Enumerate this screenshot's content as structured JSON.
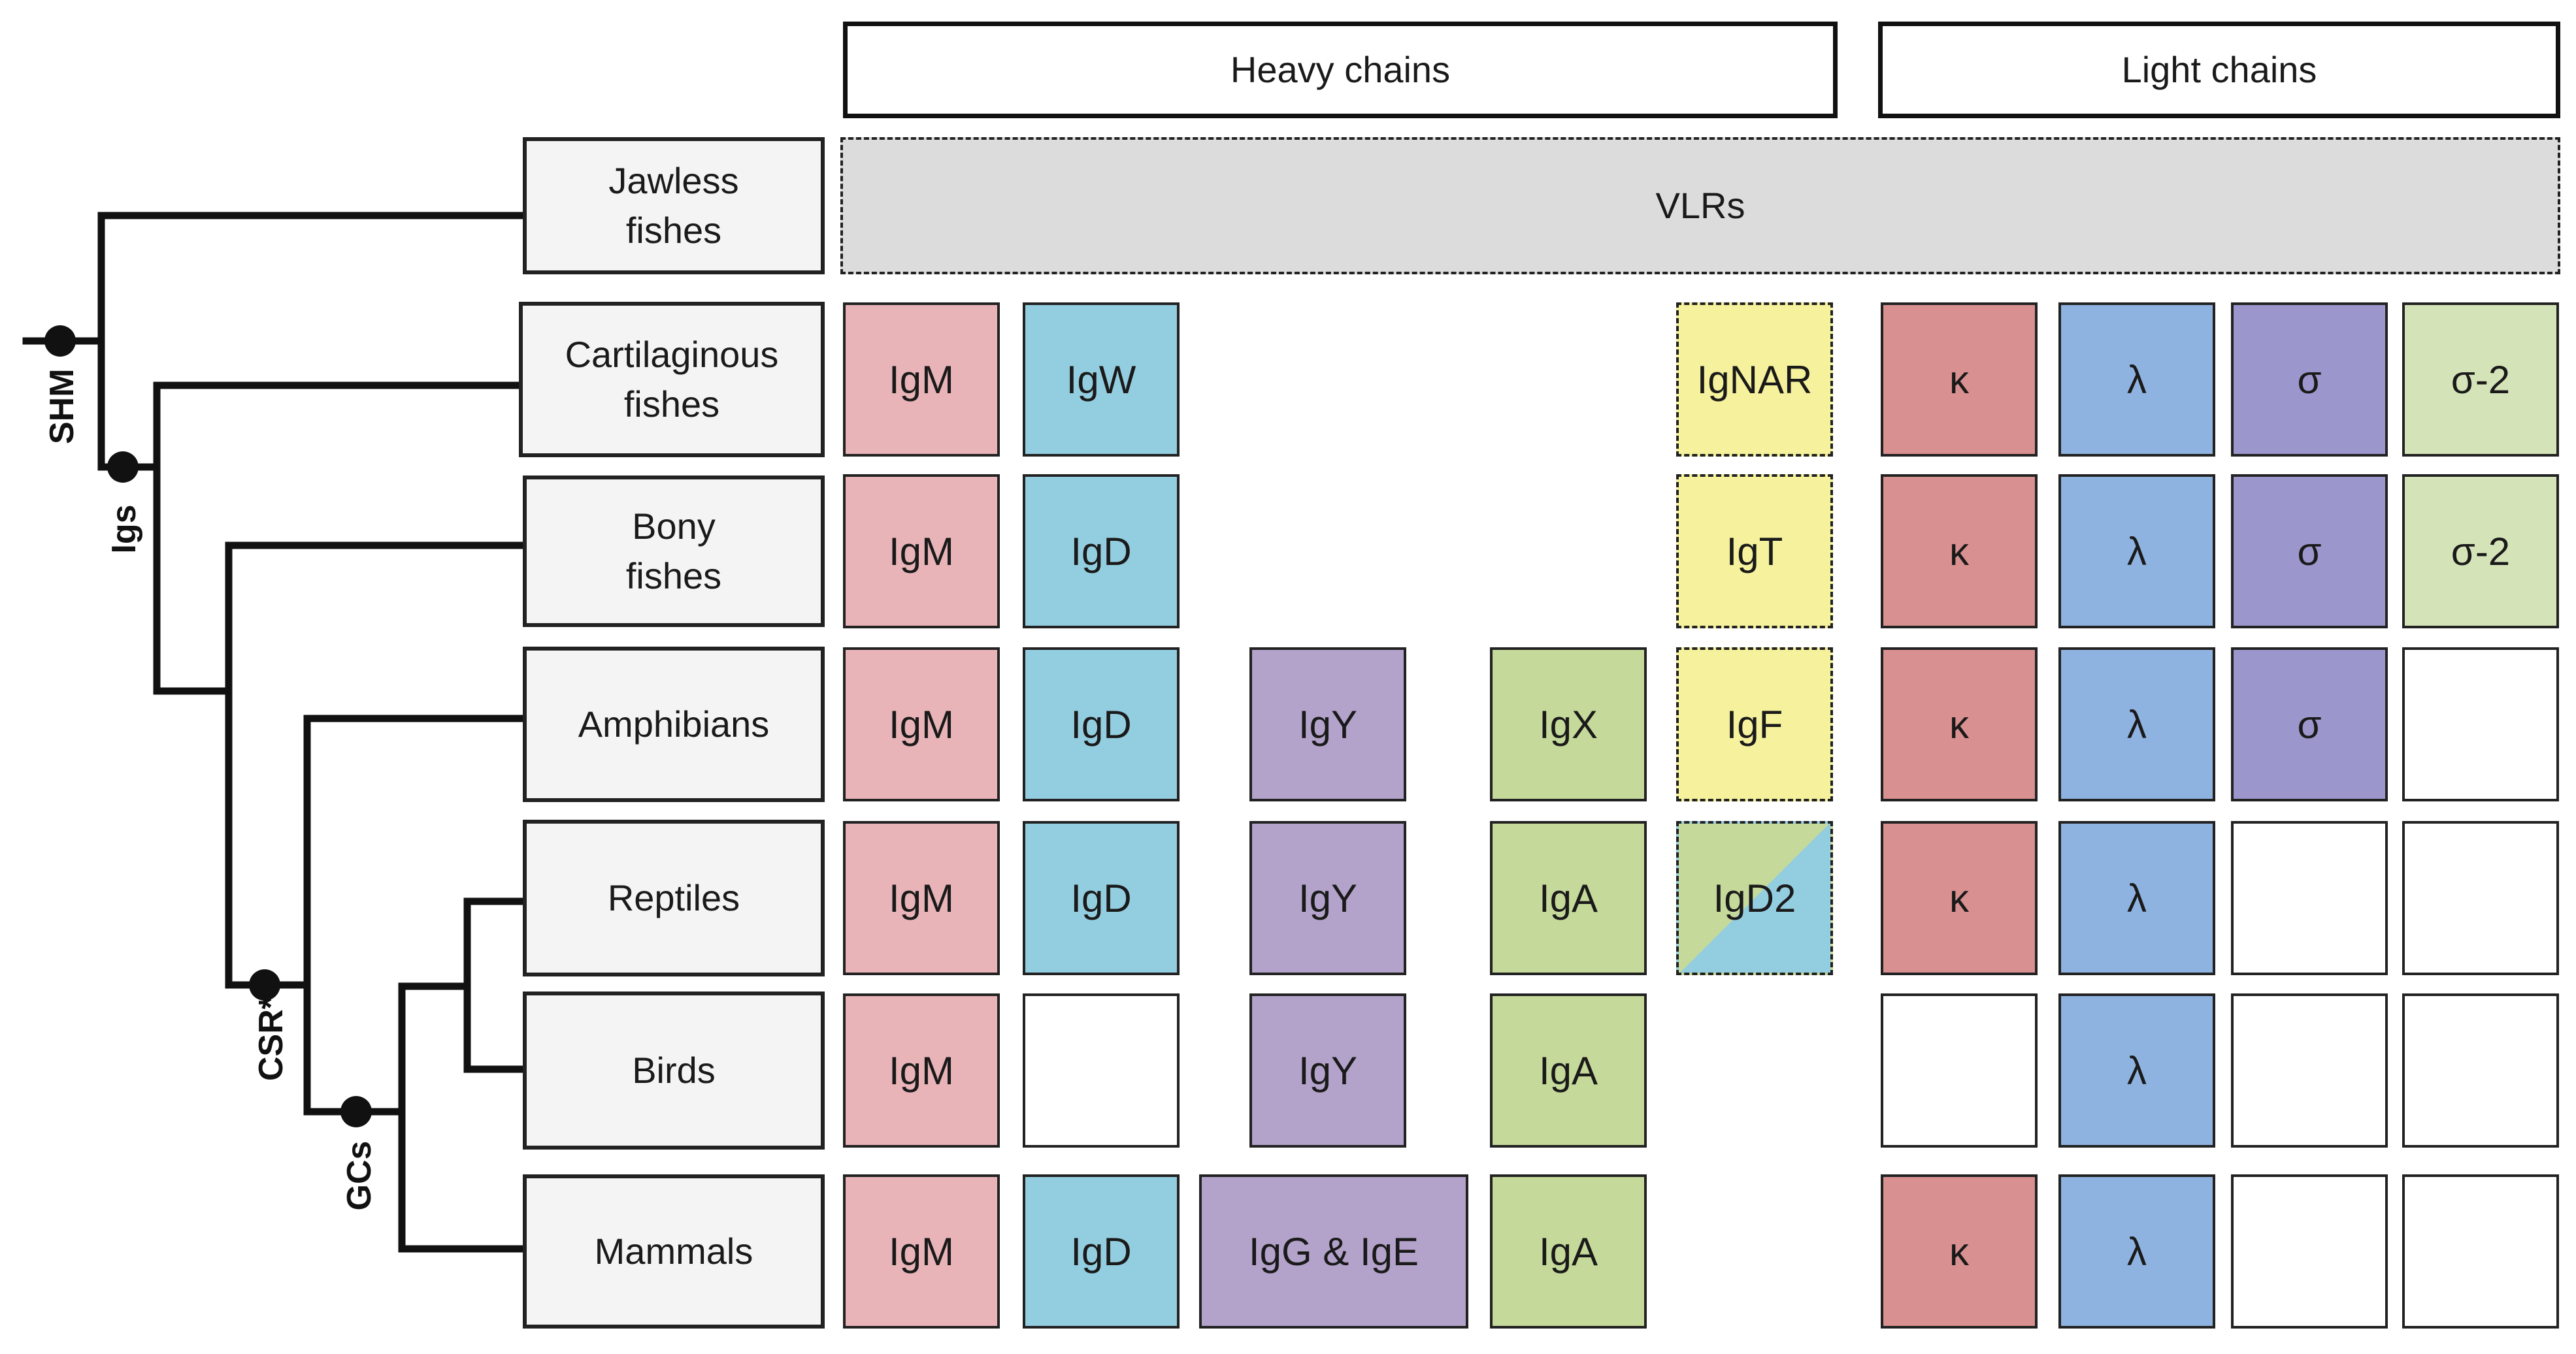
{
  "headers": {
    "heavy": "Heavy chains",
    "light": "Light chains"
  },
  "markers": {
    "shm": "SHM",
    "igs": "Igs",
    "csr": "CSR*",
    "gcs": "GCs"
  },
  "vlr_label": "VLRs",
  "colors": {
    "igm": "#e8b4b8",
    "igd": "#93cde0",
    "igy": "#b3a2c9",
    "iga": "#c5d99a",
    "dashed_yellow": "#f5f19c",
    "kappa": "#d99090",
    "lambda": "#8fb3e0",
    "sigma": "#9b97cc",
    "sigma2": "#d5e4b8",
    "taxon_bg": "#f4f4f4",
    "vlr_bg": "#dcdcdc"
  },
  "rows": [
    {
      "taxon": "Jawless\nfishes",
      "heavy": [],
      "light": []
    },
    {
      "taxon": "Cartilaginous\nfishes",
      "heavy": [
        {
          "label": "IgM",
          "color": "igm"
        },
        {
          "label": "IgW",
          "color": "igd"
        },
        {
          "label": "IgNAR",
          "color": "dashed_yellow",
          "dashed": true
        }
      ],
      "light": [
        {
          "label": "κ",
          "color": "kappa"
        },
        {
          "label": "λ",
          "color": "lambda"
        },
        {
          "label": "σ",
          "color": "sigma"
        },
        {
          "label": "σ-2",
          "color": "sigma2"
        }
      ]
    },
    {
      "taxon": "Bony\nfishes",
      "heavy": [
        {
          "label": "IgM",
          "color": "igm"
        },
        {
          "label": "IgD",
          "color": "igd"
        },
        {
          "label": "IgT",
          "color": "dashed_yellow",
          "dashed": true
        }
      ],
      "light": [
        {
          "label": "κ",
          "color": "kappa"
        },
        {
          "label": "λ",
          "color": "lambda"
        },
        {
          "label": "σ",
          "color": "sigma"
        },
        {
          "label": "σ-2",
          "color": "sigma2"
        }
      ]
    },
    {
      "taxon": "Amphibians",
      "heavy": [
        {
          "label": "IgM",
          "color": "igm"
        },
        {
          "label": "IgD",
          "color": "igd"
        },
        {
          "label": "IgY",
          "color": "igy"
        },
        {
          "label": "IgX",
          "color": "iga"
        },
        {
          "label": "IgF",
          "color": "dashed_yellow",
          "dashed": true
        }
      ],
      "light": [
        {
          "label": "κ",
          "color": "kappa"
        },
        {
          "label": "λ",
          "color": "lambda"
        },
        {
          "label": "σ",
          "color": "sigma"
        },
        {
          "label": "",
          "color": "empty"
        }
      ]
    },
    {
      "taxon": "Reptiles",
      "heavy": [
        {
          "label": "IgM",
          "color": "igm"
        },
        {
          "label": "IgD",
          "color": "igd"
        },
        {
          "label": "IgY",
          "color": "igy"
        },
        {
          "label": "IgA",
          "color": "iga"
        },
        {
          "label": "IgD2",
          "color": "split",
          "dashed": true
        }
      ],
      "light": [
        {
          "label": "κ",
          "color": "kappa"
        },
        {
          "label": "λ",
          "color": "lambda"
        },
        {
          "label": "",
          "color": "empty"
        },
        {
          "label": "",
          "color": "empty"
        }
      ]
    },
    {
      "taxon": "Birds",
      "heavy": [
        {
          "label": "IgM",
          "color": "igm"
        },
        {
          "label": "",
          "color": "empty"
        },
        {
          "label": "IgY",
          "color": "igy"
        },
        {
          "label": "IgA",
          "color": "iga"
        }
      ],
      "light": [
        {
          "label": "",
          "color": "empty"
        },
        {
          "label": "λ",
          "color": "lambda"
        },
        {
          "label": "",
          "color": "empty"
        },
        {
          "label": "",
          "color": "empty"
        }
      ]
    },
    {
      "taxon": "Mammals",
      "heavy": [
        {
          "label": "IgM",
          "color": "igm"
        },
        {
          "label": "IgD",
          "color": "igd"
        },
        {
          "label": "IgG & IgE",
          "color": "igy"
        },
        {
          "label": "IgA",
          "color": "iga"
        }
      ],
      "light": [
        {
          "label": "κ",
          "color": "kappa"
        },
        {
          "label": "λ",
          "color": "lambda"
        },
        {
          "label": "",
          "color": "empty"
        },
        {
          "label": "",
          "color": "empty"
        }
      ]
    }
  ]
}
